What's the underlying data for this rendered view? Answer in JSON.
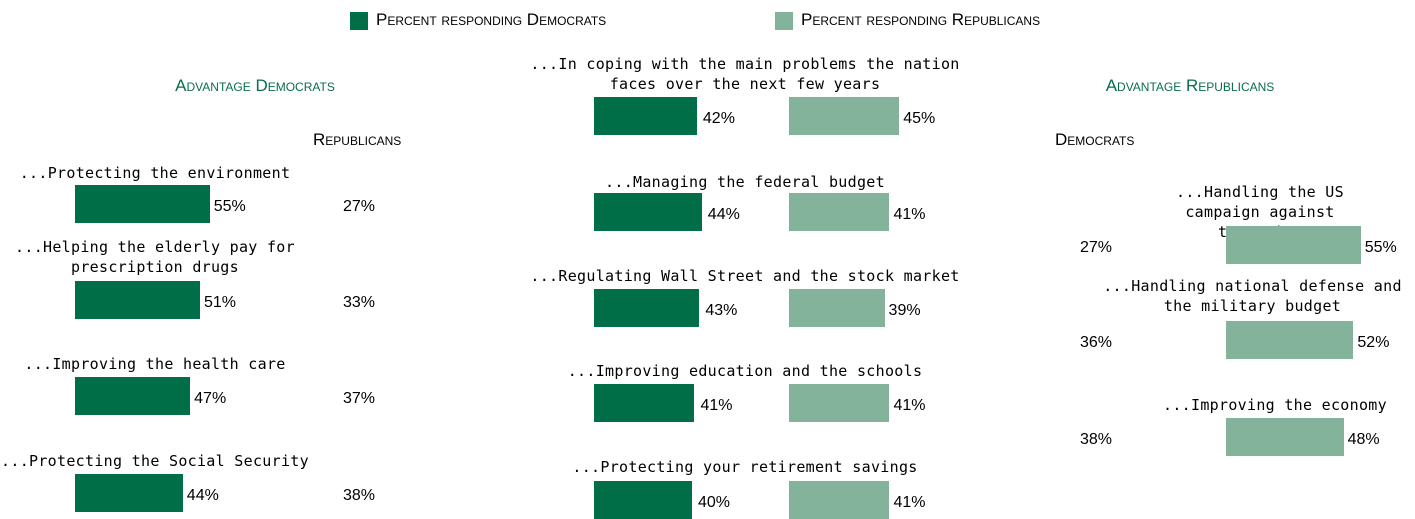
{
  "chart_data": {
    "type": "bar",
    "colors": {
      "democrats": "#006f48",
      "republicans": "#84b39c",
      "heading": "#0a6e4a"
    },
    "legend": [
      {
        "name": "Percent responding Democrats",
        "color": "#006f48"
      },
      {
        "name": "Percent responding Republicans",
        "color": "#84b39c"
      }
    ],
    "panels": [
      {
        "title": "Advantage Democrats",
        "subheading": "Republicans",
        "items": [
          {
            "label": "...Protecting the environment",
            "democrats": 55,
            "republicans": 27,
            "dem_text": "55%",
            "rep_text": "27%"
          },
          {
            "label": "...Helping the elderly pay for prescription drugs",
            "democrats": 51,
            "republicans": 33,
            "dem_text": "51%",
            "rep_text": "33%"
          },
          {
            "label": "...Improving the health care system",
            "democrats": 47,
            "republicans": 37,
            "dem_text": "47%",
            "rep_text": "37%"
          },
          {
            "label": "...Protecting the Social Security system",
            "democrats": 44,
            "republicans": 38,
            "dem_text": "44%",
            "rep_text": "38%"
          }
        ]
      },
      {
        "title": "",
        "items": [
          {
            "label": "...In coping with the main problems the nation faces over the next few years",
            "democrats": 42,
            "republicans": 45,
            "dem_text": "42%",
            "rep_text": "45%"
          },
          {
            "label": "...Managing the federal budget",
            "democrats": 44,
            "republicans": 41,
            "dem_text": "44%",
            "rep_text": "41%"
          },
          {
            "label": "...Regulating Wall Street and the stock market",
            "democrats": 43,
            "republicans": 39,
            "dem_text": "43%",
            "rep_text": "39%"
          },
          {
            "label": "...Improving education and the schools",
            "democrats": 41,
            "republicans": 41,
            "dem_text": "41%",
            "rep_text": "41%"
          },
          {
            "label": "...Protecting your retirement savings",
            "democrats": 40,
            "republicans": 41,
            "dem_text": "40%",
            "rep_text": "41%"
          }
        ]
      },
      {
        "title": "Advantage Republicans",
        "subheading": "Democrats",
        "items": [
          {
            "label": "...Handling the US campaign against terrorism",
            "democrats": 27,
            "republicans": 55,
            "dem_text": "27%",
            "rep_text": "55%"
          },
          {
            "label": "...Handling national defense and the military budget",
            "democrats": 36,
            "republicans": 52,
            "dem_text": "36%",
            "rep_text": "52%"
          },
          {
            "label": "...Improving the economy",
            "democrats": 38,
            "republicans": 48,
            "dem_text": "38%",
            "rep_text": "48%"
          }
        ]
      }
    ]
  }
}
